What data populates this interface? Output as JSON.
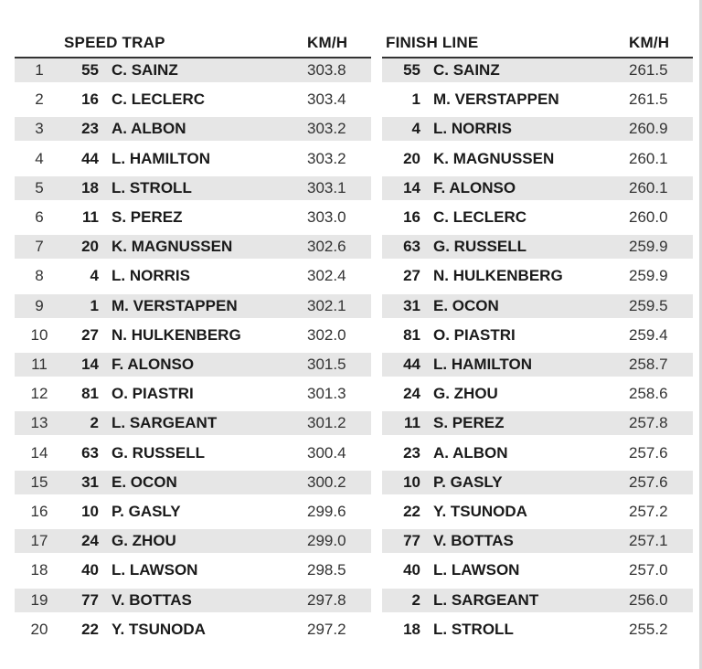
{
  "speed_trap": {
    "title": "SPEED TRAP",
    "unit": "KM/H",
    "rows": [
      {
        "pos": "1",
        "num": "55",
        "driver": "C. SAINZ",
        "speed": "303.8"
      },
      {
        "pos": "2",
        "num": "16",
        "driver": "C. LECLERC",
        "speed": "303.4"
      },
      {
        "pos": "3",
        "num": "23",
        "driver": "A. ALBON",
        "speed": "303.2"
      },
      {
        "pos": "4",
        "num": "44",
        "driver": "L. HAMILTON",
        "speed": "303.2"
      },
      {
        "pos": "5",
        "num": "18",
        "driver": "L. STROLL",
        "speed": "303.1"
      },
      {
        "pos": "6",
        "num": "11",
        "driver": "S. PEREZ",
        "speed": "303.0"
      },
      {
        "pos": "7",
        "num": "20",
        "driver": "K. MAGNUSSEN",
        "speed": "302.6"
      },
      {
        "pos": "8",
        "num": "4",
        "driver": "L. NORRIS",
        "speed": "302.4"
      },
      {
        "pos": "9",
        "num": "1",
        "driver": "M. VERSTAPPEN",
        "speed": "302.1"
      },
      {
        "pos": "10",
        "num": "27",
        "driver": "N. HULKENBERG",
        "speed": "302.0"
      },
      {
        "pos": "11",
        "num": "14",
        "driver": "F. ALONSO",
        "speed": "301.5"
      },
      {
        "pos": "12",
        "num": "81",
        "driver": "O. PIASTRI",
        "speed": "301.3"
      },
      {
        "pos": "13",
        "num": "2",
        "driver": "L. SARGEANT",
        "speed": "301.2"
      },
      {
        "pos": "14",
        "num": "63",
        "driver": "G. RUSSELL",
        "speed": "300.4"
      },
      {
        "pos": "15",
        "num": "31",
        "driver": "E. OCON",
        "speed": "300.2"
      },
      {
        "pos": "16",
        "num": "10",
        "driver": "P. GASLY",
        "speed": "299.6"
      },
      {
        "pos": "17",
        "num": "24",
        "driver": "G. ZHOU",
        "speed": "299.0"
      },
      {
        "pos": "18",
        "num": "40",
        "driver": "L. LAWSON",
        "speed": "298.5"
      },
      {
        "pos": "19",
        "num": "77",
        "driver": "V. BOTTAS",
        "speed": "297.8"
      },
      {
        "pos": "20",
        "num": "22",
        "driver": "Y. TSUNODA",
        "speed": "297.2"
      }
    ]
  },
  "finish_line": {
    "title": "FINISH LINE",
    "unit": "KM/H",
    "rows": [
      {
        "num": "55",
        "driver": "C. SAINZ",
        "speed": "261.5"
      },
      {
        "num": "1",
        "driver": "M. VERSTAPPEN",
        "speed": "261.5"
      },
      {
        "num": "4",
        "driver": "L. NORRIS",
        "speed": "260.9"
      },
      {
        "num": "20",
        "driver": "K. MAGNUSSEN",
        "speed": "260.1"
      },
      {
        "num": "14",
        "driver": "F. ALONSO",
        "speed": "260.1"
      },
      {
        "num": "16",
        "driver": "C. LECLERC",
        "speed": "260.0"
      },
      {
        "num": "63",
        "driver": "G. RUSSELL",
        "speed": "259.9"
      },
      {
        "num": "27",
        "driver": "N. HULKENBERG",
        "speed": "259.9"
      },
      {
        "num": "31",
        "driver": "E. OCON",
        "speed": "259.5"
      },
      {
        "num": "81",
        "driver": "O. PIASTRI",
        "speed": "259.4"
      },
      {
        "num": "44",
        "driver": "L. HAMILTON",
        "speed": "258.7"
      },
      {
        "num": "24",
        "driver": "G. ZHOU",
        "speed": "258.6"
      },
      {
        "num": "11",
        "driver": "S. PEREZ",
        "speed": "257.8"
      },
      {
        "num": "23",
        "driver": "A. ALBON",
        "speed": "257.6"
      },
      {
        "num": "10",
        "driver": "P. GASLY",
        "speed": "257.6"
      },
      {
        "num": "22",
        "driver": "Y. TSUNODA",
        "speed": "257.2"
      },
      {
        "num": "77",
        "driver": "V. BOTTAS",
        "speed": "257.1"
      },
      {
        "num": "40",
        "driver": "L. LAWSON",
        "speed": "257.0"
      },
      {
        "num": "2",
        "driver": "L. SARGEANT",
        "speed": "256.0"
      },
      {
        "num": "18",
        "driver": "L. STROLL",
        "speed": "255.2"
      }
    ]
  }
}
